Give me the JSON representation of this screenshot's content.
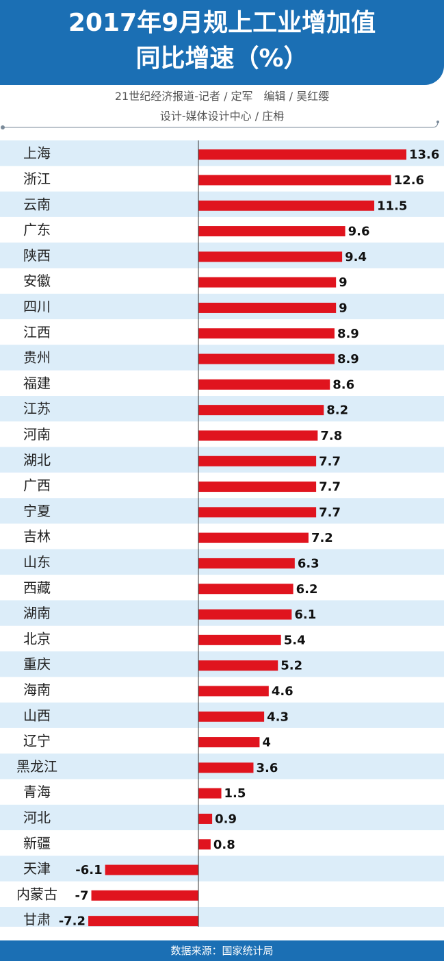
{
  "header": {
    "title_line1": "2017年9月规上工业增加值",
    "title_line2": "同比增速（%）"
  },
  "credits": {
    "line1": "21世纪经济报道-记者 / 定军　编辑 / 吴红缨",
    "line2": "设计-媒体设计中心 / 庄枏"
  },
  "footer": {
    "source": "数据来源：国家统计局"
  },
  "colors": {
    "header_bg": "#1b6fb4",
    "bar": "#e0141e",
    "stripe": "#dcedf9",
    "axis": "#333333"
  },
  "chart_data": {
    "type": "bar",
    "orientation": "horizontal",
    "title": "2017年9月规上工业增加值同比增速（%）",
    "categories": [
      "上海",
      "浙江",
      "云南",
      "广东",
      "陕西",
      "安徽",
      "四川",
      "江西",
      "贵州",
      "福建",
      "江苏",
      "河南",
      "湖北",
      "广西",
      "宁夏",
      "吉林",
      "山东",
      "西藏",
      "湖南",
      "北京",
      "重庆",
      "海南",
      "山西",
      "辽宁",
      "黑龙江",
      "青海",
      "河北",
      "新疆",
      "天津",
      "内蒙古",
      "甘肃"
    ],
    "values": [
      13.6,
      12.6,
      11.5,
      9.6,
      9.4,
      9,
      9,
      8.9,
      8.9,
      8.6,
      8.2,
      7.8,
      7.7,
      7.7,
      7.7,
      7.2,
      6.3,
      6.2,
      6.1,
      5.4,
      5.2,
      4.6,
      4.3,
      4,
      3.6,
      1.5,
      0.9,
      0.8,
      -6.1,
      -7,
      -7.2
    ],
    "value_labels": [
      "13.6",
      "12.6",
      "11.5",
      "9.6",
      "9.4",
      "9",
      "9",
      "8.9",
      "8.9",
      "8.6",
      "8.2",
      "7.8",
      "7.7",
      "7.7",
      "7.7",
      "7.2",
      "6.3",
      "6.2",
      "6.1",
      "5.4",
      "5.2",
      "4.6",
      "4.3",
      "4",
      "3.6",
      "1.5",
      "0.9",
      "0.8",
      "-6.1",
      "-7",
      "-7.2"
    ],
    "xlim": [
      -7.5,
      14
    ],
    "grid": false,
    "legend": "none"
  }
}
